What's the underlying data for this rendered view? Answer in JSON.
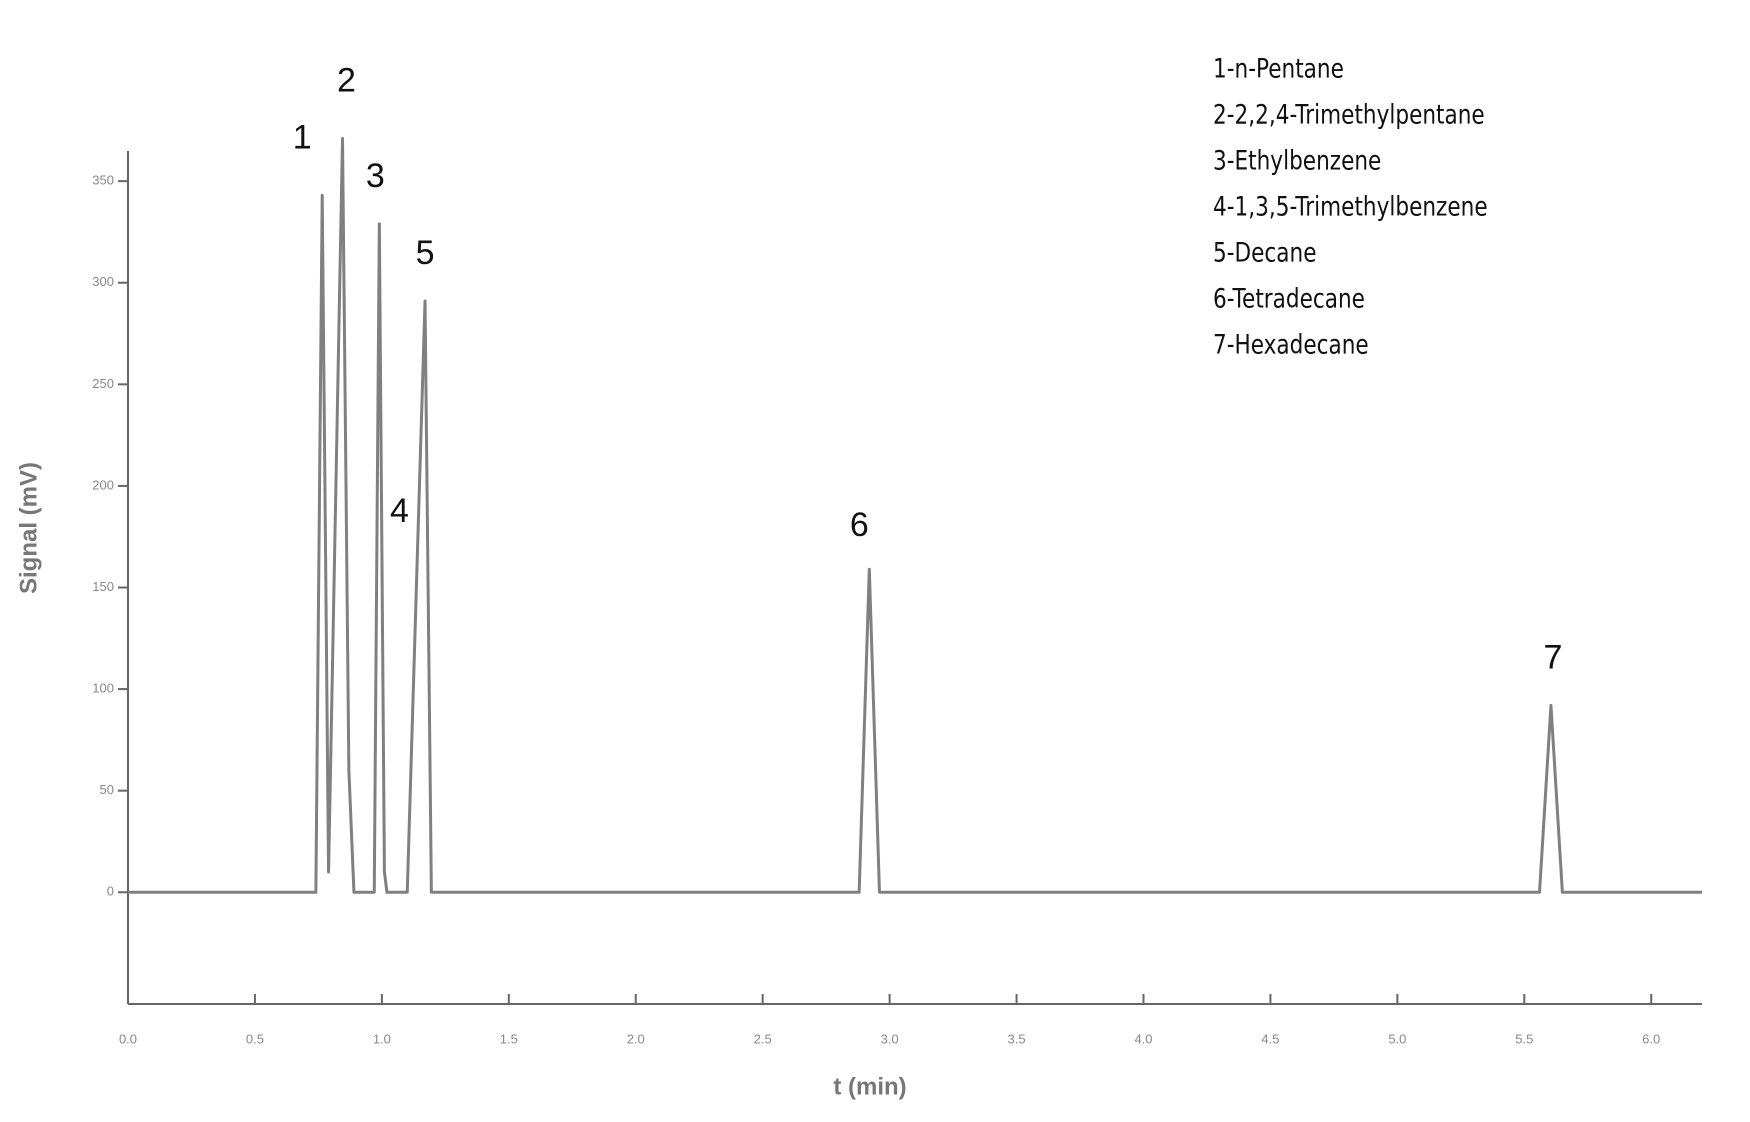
{
  "chart_data": {
    "type": "line",
    "x_label": "t (min)",
    "y_label": "Signal (mV)",
    "x": [
      0.0,
      0.74,
      0.765,
      0.79,
      0.845,
      0.87,
      0.89,
      0.97,
      0.99,
      1.01,
      1.02,
      1.1,
      1.14,
      1.17,
      1.195,
      2.88,
      2.92,
      2.96,
      5.56,
      5.605,
      5.65,
      6.2
    ],
    "series": [
      {
        "color": "#808080",
        "values": [
          0,
          0,
          343,
          10,
          371,
          60,
          0,
          0,
          329,
          10,
          0,
          0,
          167,
          291,
          0,
          0,
          159,
          0,
          0,
          92,
          0,
          0
        ]
      }
    ],
    "peak_labels": [
      "1",
      "2",
      "3",
      "4",
      "5",
      "6",
      "7"
    ],
    "legend_entries": [
      "1-n-Pentane",
      "2-2,2,4-Trimethylpentane",
      "3-Ethylbenzene",
      "4-1,3,5-Trimethylbenzene",
      "5-Decane",
      "6-Tetradecane",
      "7-Hexadecane"
    ],
    "xlim": [
      0,
      6.2
    ],
    "ylim": [
      -55,
      355
    ],
    "xticks": [
      {
        "value": 0,
        "label": "0.0"
      },
      0.5,
      {
        "value": 1,
        "label": "1.0"
      },
      1.5,
      {
        "value": 2,
        "label": "2.0"
      },
      2.5,
      {
        "value": 3,
        "label": "3.0"
      },
      3.5,
      {
        "value": 4,
        "label": "4.0"
      },
      4.5,
      {
        "value": 5,
        "label": "5.0"
      },
      5.5,
      {
        "value": 6,
        "label": "6.0"
      }
    ],
    "yticks": [
      0,
      50,
      100,
      150,
      200,
      250,
      300,
      350
    ],
    "grid": false
  }
}
